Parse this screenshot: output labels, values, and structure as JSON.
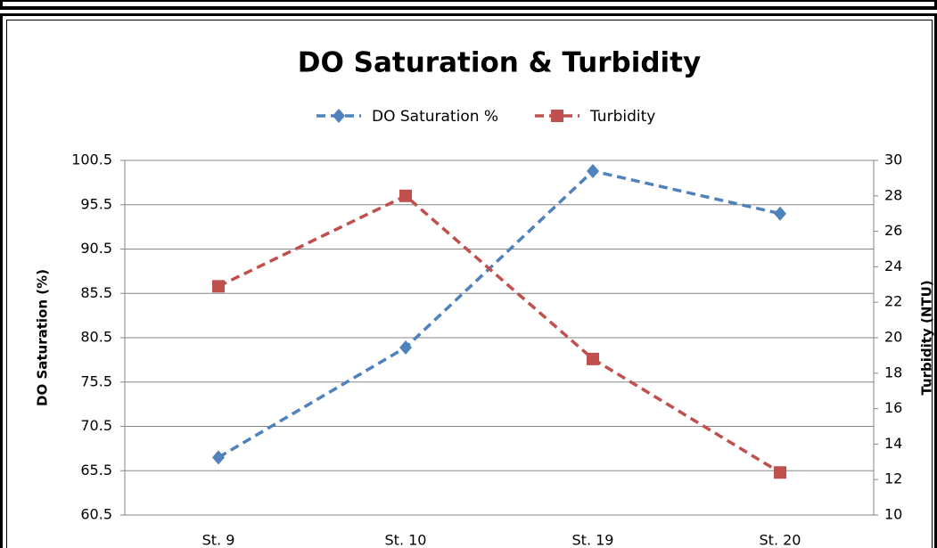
{
  "chart_data": {
    "type": "line",
    "title": "DO Saturation &  Turbidity",
    "categories": [
      "St. 9",
      "St. 10",
      "St. 19",
      "St. 20"
    ],
    "series": [
      {
        "name": "DO Saturation %",
        "color": "#4f81bd",
        "values": [
          67.0,
          79.4,
          99.3,
          94.5
        ]
      },
      {
        "name": "Turbidity",
        "color": "#c0504d",
        "axis": "y2",
        "values": [
          22.9,
          28.0,
          18.8,
          12.4
        ]
      }
    ],
    "ylabel": "DO Saturation (%)",
    "y2label": "Turbidity (NTU)",
    "ylim": [
      60.5,
      100.5
    ],
    "yticks": [
      60.5,
      65.5,
      70.5,
      75.5,
      80.5,
      85.5,
      90.5,
      95.5,
      100.5
    ],
    "y2lim": [
      10,
      30
    ],
    "y2ticks": [
      10,
      12,
      14,
      16,
      18,
      20,
      22,
      24,
      26,
      28,
      30
    ],
    "grid": true,
    "legend": "top"
  }
}
